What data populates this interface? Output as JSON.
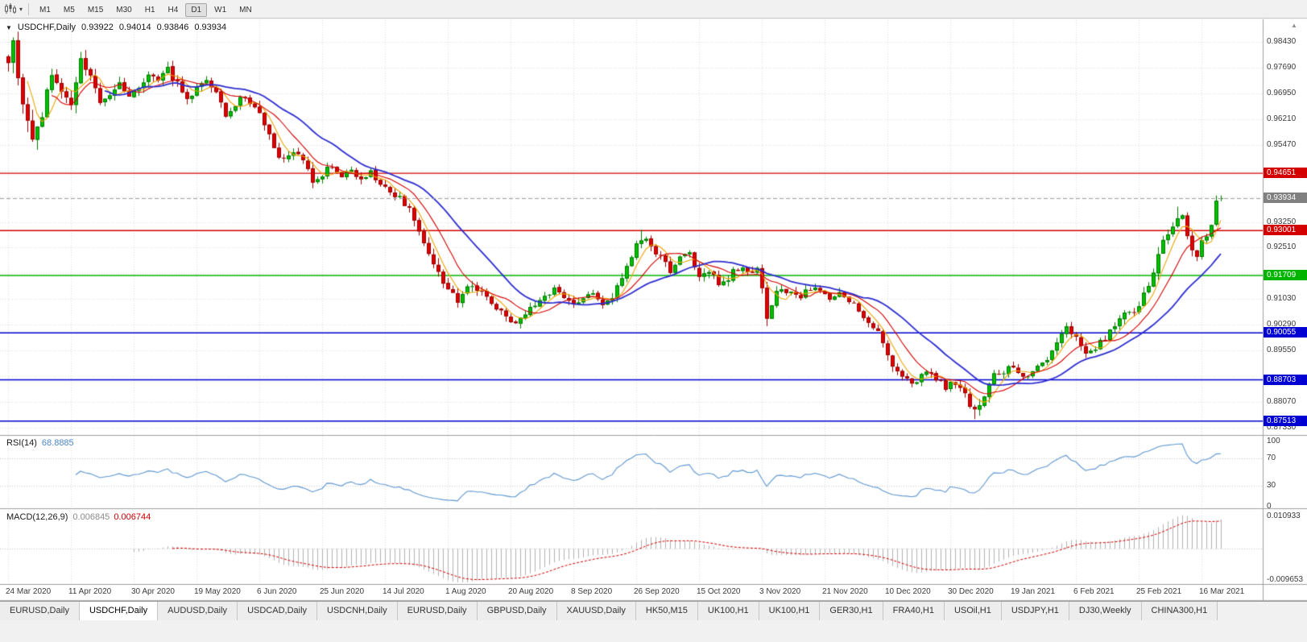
{
  "toolbar": {
    "periods": [
      {
        "label": "M1",
        "active": false
      },
      {
        "label": "M5",
        "active": false
      },
      {
        "label": "M15",
        "active": false
      },
      {
        "label": "M30",
        "active": false
      },
      {
        "label": "H1",
        "active": false
      },
      {
        "label": "H4",
        "active": false
      },
      {
        "label": "D1",
        "active": true
      },
      {
        "label": "W1",
        "active": false
      },
      {
        "label": "MN",
        "active": false
      }
    ]
  },
  "chart_header": {
    "symbol_period": "USDCHF,Daily",
    "open": "0.93922",
    "high": "0.94014",
    "low": "0.93846",
    "close": "0.93934"
  },
  "price_axis": {
    "grid_labels": [
      {
        "text": "0.98430",
        "price": 0.9843
      },
      {
        "text": "0.97690",
        "price": 0.9769
      },
      {
        "text": "0.96950",
        "price": 0.9695
      },
      {
        "text": "0.96210",
        "price": 0.9621
      },
      {
        "text": "0.95470",
        "price": 0.9547
      },
      {
        "text": "0.93250",
        "price": 0.9325
      },
      {
        "text": "0.92510",
        "price": 0.9251
      },
      {
        "text": "0.91030",
        "price": 0.9103
      },
      {
        "text": "0.90290",
        "price": 0.9029
      },
      {
        "text": "0.89550",
        "price": 0.8955
      },
      {
        "text": "0.88070",
        "price": 0.8807
      },
      {
        "text": "0.87330",
        "price": 0.8733
      }
    ],
    "badges": [
      {
        "text": "0.94651",
        "price": 0.94651,
        "color": "#d40000"
      },
      {
        "text": "0.93934",
        "price": 0.93934,
        "color": "#808080"
      },
      {
        "text": "0.93001",
        "price": 0.93001,
        "color": "#d40000"
      },
      {
        "text": "0.91709",
        "price": 0.91709,
        "color": "#00b400"
      },
      {
        "text": "0.90055",
        "price": 0.90055,
        "color": "#0000d2"
      },
      {
        "text": "0.88703",
        "price": 0.88703,
        "color": "#0000d2"
      },
      {
        "text": "0.87513",
        "price": 0.87513,
        "color": "#0000d2"
      }
    ]
  },
  "time_axis": {
    "labels": [
      {
        "text": "24 Mar 2020",
        "i": 0
      },
      {
        "text": "11 Apr 2020",
        "i": 13
      },
      {
        "text": "30 Apr 2020",
        "i": 26
      },
      {
        "text": "19 May 2020",
        "i": 39
      },
      {
        "text": "6 Jun 2020",
        "i": 52
      },
      {
        "text": "25 Jun 2020",
        "i": 65
      },
      {
        "text": "14 Jul 2020",
        "i": 78
      },
      {
        "text": "1 Aug 2020",
        "i": 91
      },
      {
        "text": "20 Aug 2020",
        "i": 104
      },
      {
        "text": "8 Sep 2020",
        "i": 117
      },
      {
        "text": "26 Sep 2020",
        "i": 130
      },
      {
        "text": "15 Oct 2020",
        "i": 143
      },
      {
        "text": "3 Nov 2020",
        "i": 156
      },
      {
        "text": "21 Nov 2020",
        "i": 169
      },
      {
        "text": "10 Dec 2020",
        "i": 182
      },
      {
        "text": "30 Dec 2020",
        "i": 195
      },
      {
        "text": "19 Jan 2021",
        "i": 208
      },
      {
        "text": "6 Feb 2021",
        "i": 221
      },
      {
        "text": "25 Feb 2021",
        "i": 234
      },
      {
        "text": "16 Mar 2021",
        "i": 247
      }
    ]
  },
  "rsi_panel": {
    "label": "RSI(14)",
    "value": "68.8885",
    "axis": [
      {
        "text": "100",
        "v": 100
      },
      {
        "text": "70",
        "v": 70
      },
      {
        "text": "30",
        "v": 30
      },
      {
        "text": "0",
        "v": 0
      }
    ],
    "levels": [
      70,
      30
    ],
    "line_color": "#5e97d0"
  },
  "macd_panel": {
    "label": "MACD(12,26,9)",
    "main_value": "0.006845",
    "signal_value": "0.006744",
    "axis": [
      {
        "text": "0.010933",
        "v": 0.010933
      },
      {
        "text": "-0.009653",
        "v": -0.009653
      }
    ],
    "range": [
      -0.009653,
      0.010933
    ],
    "hist_color": "#b2b2b2",
    "signal_color": "#d40000"
  },
  "tabs": [
    {
      "label": "EURUSD,Daily",
      "active": false
    },
    {
      "label": "USDCHF,Daily",
      "active": true
    },
    {
      "label": "AUDUSD,Daily",
      "active": false
    },
    {
      "label": "USDCAD,Daily",
      "active": false
    },
    {
      "label": "USDCNH,Daily",
      "active": false
    },
    {
      "label": "EURUSD,Daily",
      "active": false
    },
    {
      "label": "GBPUSD,Daily",
      "active": false
    },
    {
      "label": "XAUUSD,Daily",
      "active": false
    },
    {
      "label": "HK50,M15",
      "active": false
    },
    {
      "label": "UK100,H1",
      "active": false
    },
    {
      "label": "UK100,H1",
      "active": false
    },
    {
      "label": "GER30,H1",
      "active": false
    },
    {
      "label": "FRA40,H1",
      "active": false
    },
    {
      "label": "USOil,H1",
      "active": false
    },
    {
      "label": "USDJPY,H1",
      "active": false
    },
    {
      "label": "DJ30,Weekly",
      "active": false
    },
    {
      "label": "CHINA300,H1",
      "active": false
    }
  ],
  "chart_data": {
    "type": "candlestick",
    "symbol": "USDCHF",
    "timeframe": "Daily",
    "x_range": [
      "24 Mar 2020",
      "19 Mar 2021"
    ],
    "y_range": [
      0.8716,
      0.9904
    ],
    "grid": {
      "base": 0.9843,
      "step": 0.0074
    },
    "candle_count": 252,
    "seed": 9,
    "last_ohlc": {
      "open": 0.93922,
      "high": 0.94014,
      "low": 0.93846,
      "close": 0.93934
    },
    "current_price": 0.93934,
    "up_fill": "#00c000",
    "up_edge": "#007a00",
    "down_fill": "#e00000",
    "down_edge": "#990000",
    "ma_lines": [
      {
        "name": "fast",
        "period": 5,
        "color": "#eda400",
        "width": 1.1
      },
      {
        "name": "medium",
        "period": 10,
        "color": "#d40000",
        "width": 1.1
      },
      {
        "name": "slow",
        "period": 21,
        "color": "#2d2dd0",
        "width": 1.8
      }
    ],
    "horizontal_lines": [
      {
        "price": 0.94651,
        "color": "#d40000"
      },
      {
        "price": 0.93001,
        "color": "#d40000"
      },
      {
        "price": 0.91709,
        "color": "#00b400"
      },
      {
        "price": 0.90055,
        "color": "#0000d2"
      },
      {
        "price": 0.88703,
        "color": "#0000d2"
      },
      {
        "price": 0.87513,
        "color": "#0000d2"
      }
    ],
    "price_path": [
      [
        0,
        0.9795,
        2.0
      ],
      [
        1,
        0.9838,
        2.2
      ],
      [
        3,
        0.9675,
        2.5
      ],
      [
        5,
        0.9545,
        2.4
      ],
      [
        7,
        0.9638,
        2.0
      ],
      [
        9,
        0.9748,
        1.9
      ],
      [
        11,
        0.97,
        1.7
      ],
      [
        13,
        0.9662,
        1.6
      ],
      [
        15,
        0.9782,
        1.7
      ],
      [
        17,
        0.9735,
        1.5
      ],
      [
        19,
        0.966,
        1.4
      ],
      [
        21,
        0.9688,
        1.3
      ],
      [
        23,
        0.9725,
        1.3
      ],
      [
        25,
        0.9692,
        1.2
      ],
      [
        27,
        0.9718,
        1.2
      ],
      [
        29,
        0.9752,
        1.2
      ],
      [
        31,
        0.9722,
        1.2
      ],
      [
        33,
        0.9766,
        1.2
      ],
      [
        35,
        0.9722,
        1.2
      ],
      [
        37,
        0.9682,
        1.2
      ],
      [
        39,
        0.9716,
        1.1
      ],
      [
        41,
        0.9742,
        1.1
      ],
      [
        43,
        0.97,
        1.1
      ],
      [
        45,
        0.9626,
        1.2
      ],
      [
        47,
        0.9656,
        1.1
      ],
      [
        49,
        0.9692,
        1.1
      ],
      [
        51,
        0.9646,
        1.1
      ],
      [
        53,
        0.9612,
        1.2
      ],
      [
        55,
        0.9532,
        1.3
      ],
      [
        57,
        0.9496,
        1.2
      ],
      [
        59,
        0.9526,
        1.1
      ],
      [
        61,
        0.9506,
        1.1
      ],
      [
        63,
        0.9436,
        1.2
      ],
      [
        65,
        0.9466,
        1.1
      ],
      [
        67,
        0.9486,
        1.0
      ],
      [
        69,
        0.9456,
        1.0
      ],
      [
        71,
        0.9472,
        1.0
      ],
      [
        73,
        0.9442,
        1.0
      ],
      [
        75,
        0.9466,
        1.0
      ],
      [
        77,
        0.9442,
        1.0
      ],
      [
        79,
        0.9412,
        1.0
      ],
      [
        81,
        0.9392,
        1.1
      ],
      [
        83,
        0.9356,
        1.1
      ],
      [
        85,
        0.9302,
        1.2
      ],
      [
        87,
        0.9242,
        1.3
      ],
      [
        89,
        0.9172,
        1.3
      ],
      [
        91,
        0.9132,
        1.2
      ],
      [
        93,
        0.9102,
        1.2
      ],
      [
        95,
        0.9136,
        1.1
      ],
      [
        97,
        0.9126,
        1.0
      ],
      [
        99,
        0.9112,
        1.0
      ],
      [
        101,
        0.9076,
        1.1
      ],
      [
        103,
        0.9052,
        1.1
      ],
      [
        105,
        0.9024,
        1.2
      ],
      [
        107,
        0.9062,
        1.1
      ],
      [
        109,
        0.9086,
        1.0
      ],
      [
        111,
        0.9112,
        1.0
      ],
      [
        113,
        0.9126,
        1.0
      ],
      [
        115,
        0.9106,
        1.0
      ],
      [
        117,
        0.9086,
        1.0
      ],
      [
        119,
        0.9112,
        1.0
      ],
      [
        121,
        0.9126,
        0.9
      ],
      [
        123,
        0.9086,
        1.0
      ],
      [
        125,
        0.9112,
        1.0
      ],
      [
        127,
        0.9152,
        1.1
      ],
      [
        129,
        0.9232,
        1.3
      ],
      [
        131,
        0.9282,
        1.3
      ],
      [
        133,
        0.9256,
        1.1
      ],
      [
        135,
        0.9222,
        1.0
      ],
      [
        137,
        0.9186,
        1.0
      ],
      [
        139,
        0.9216,
        1.0
      ],
      [
        141,
        0.9242,
        1.0
      ],
      [
        143,
        0.9162,
        1.1
      ],
      [
        145,
        0.9176,
        1.0
      ],
      [
        147,
        0.9152,
        1.0
      ],
      [
        149,
        0.9166,
        1.0
      ],
      [
        151,
        0.9192,
        1.0
      ],
      [
        153,
        0.9176,
        1.0
      ],
      [
        155,
        0.9186,
        1.2
      ],
      [
        156,
        0.9142,
        1.4
      ],
      [
        157,
        0.9046,
        1.6
      ],
      [
        158,
        0.9092,
        1.3
      ],
      [
        160,
        0.9136,
        1.1
      ],
      [
        162,
        0.9122,
        1.0
      ],
      [
        164,
        0.9112,
        0.9
      ],
      [
        166,
        0.9132,
        0.9
      ],
      [
        168,
        0.9122,
        0.9
      ],
      [
        170,
        0.9102,
        0.9
      ],
      [
        172,
        0.9116,
        0.9
      ],
      [
        174,
        0.9102,
        0.9
      ],
      [
        176,
        0.9072,
        0.9
      ],
      [
        178,
        0.9042,
        1.0
      ],
      [
        180,
        0.9002,
        1.0
      ],
      [
        182,
        0.8932,
        1.1
      ],
      [
        184,
        0.8896,
        1.0
      ],
      [
        186,
        0.8876,
        1.0
      ],
      [
        188,
        0.8862,
        1.0
      ],
      [
        190,
        0.8896,
        1.0
      ],
      [
        192,
        0.8876,
        1.0
      ],
      [
        194,
        0.8852,
        1.0
      ],
      [
        196,
        0.8866,
        1.0
      ],
      [
        198,
        0.8826,
        1.1
      ],
      [
        200,
        0.8776,
        1.3
      ],
      [
        202,
        0.8816,
        1.2
      ],
      [
        204,
        0.8882,
        1.1
      ],
      [
        206,
        0.8896,
        1.0
      ],
      [
        208,
        0.8906,
        0.9
      ],
      [
        210,
        0.8882,
        0.9
      ],
      [
        212,
        0.8896,
        0.9
      ],
      [
        214,
        0.8912,
        0.9
      ],
      [
        216,
        0.8952,
        1.0
      ],
      [
        218,
        0.9002,
        1.1
      ],
      [
        219,
        0.9032,
        1.1
      ],
      [
        221,
        0.8986,
        1.0
      ],
      [
        223,
        0.8946,
        1.0
      ],
      [
        225,
        0.8966,
        1.0
      ],
      [
        227,
        0.8992,
        1.0
      ],
      [
        229,
        0.9022,
        1.1
      ],
      [
        231,
        0.9062,
        1.2
      ],
      [
        233,
        0.9072,
        1.1
      ],
      [
        234,
        0.9086,
        1.1
      ],
      [
        236,
        0.9142,
        1.3
      ],
      [
        238,
        0.9232,
        1.4
      ],
      [
        240,
        0.9292,
        1.4
      ],
      [
        242,
        0.9346,
        1.3
      ],
      [
        243,
        0.9332,
        1.2
      ],
      [
        245,
        0.9246,
        1.2
      ],
      [
        246,
        0.9226,
        1.1
      ],
      [
        247,
        0.9266,
        1.1
      ],
      [
        248,
        0.9292,
        1.1
      ],
      [
        249,
        0.931,
        1.1
      ],
      [
        250,
        0.9388,
        1.3
      ],
      [
        251,
        0.93934,
        1.0
      ]
    ],
    "wick_marks": [
      {
        "i": 2,
        "high": 0.9868
      },
      {
        "i": 15,
        "high": 0.9792
      },
      {
        "i": 131,
        "high": 0.9302
      },
      {
        "i": 157,
        "low": 0.9028
      },
      {
        "i": 200,
        "low": 0.8757
      },
      {
        "i": 242,
        "high": 0.9369
      },
      {
        "i": 250,
        "high": 0.9401
      }
    ]
  }
}
